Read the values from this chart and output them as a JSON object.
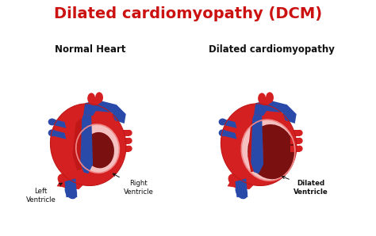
{
  "title": "Dilated cardiomyopathy (DCM)",
  "title_color": "#cc1111",
  "title_fontsize": 14,
  "left_label": "Normal Heart",
  "right_label": "Dilated cardiomyopathy",
  "label_fontsize": 8.5,
  "annotation_lv": "Left\nVentricle",
  "annotation_rv": "Right\nVentricle",
  "annotation_dv": "Dilated\nVentricle",
  "bg_color": "#ffffff",
  "red": "#d42020",
  "red_mid": "#c01818",
  "red_light": "#f08888",
  "pink": "#f5c0c0",
  "dark_red": "#7a1010",
  "darker_red": "#8b1515",
  "blue": "#2a4aaa",
  "blue_dark": "#1a2a80",
  "blue_light": "#4060c0"
}
